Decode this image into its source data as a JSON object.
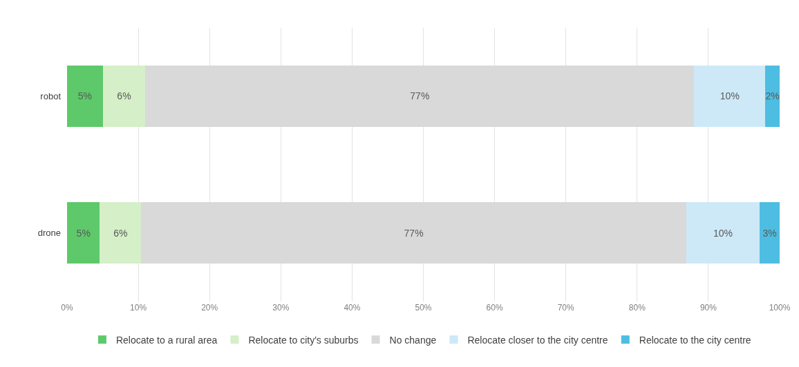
{
  "chart_data": {
    "type": "bar",
    "orientation": "horizontal",
    "stacked": true,
    "categories": [
      "robot",
      "drone"
    ],
    "series": [
      {
        "name": "Relocate to a rural area",
        "color": "#5ec96b",
        "values": [
          5,
          4.6
        ],
        "value_labels": [
          "5%",
          "5%"
        ]
      },
      {
        "name": "Relocate to city's suburbs",
        "color": "#d5efc8",
        "values": [
          6,
          5.8
        ],
        "value_labels": [
          "6%",
          "6%"
        ]
      },
      {
        "name": "No change",
        "color": "#d9d9d9",
        "values": [
          77,
          76.5
        ],
        "value_labels": [
          "77%",
          "77%"
        ]
      },
      {
        "name": "Relocate closer to the city centre",
        "color": "#cde9f7",
        "values": [
          10,
          10.3
        ],
        "value_labels": [
          "10%",
          "10%"
        ]
      },
      {
        "name": "Relocate to the city centre",
        "color": "#4dbde1",
        "values": [
          2,
          2.8
        ],
        "value_labels": [
          "2%",
          "3%"
        ]
      }
    ],
    "xlim": [
      0,
      100
    ],
    "xticks": [
      {
        "value": 0,
        "label": "0%"
      },
      {
        "value": 10,
        "label": "10%"
      },
      {
        "value": 20,
        "label": "20%"
      },
      {
        "value": 30,
        "label": "30%"
      },
      {
        "value": 40,
        "label": "40%"
      },
      {
        "value": 50,
        "label": "50%"
      },
      {
        "value": 60,
        "label": "60%"
      },
      {
        "value": 70,
        "label": "70%"
      },
      {
        "value": 80,
        "label": "80%"
      },
      {
        "value": 90,
        "label": "90%"
      },
      {
        "value": 100,
        "label": "100%"
      }
    ],
    "grid": "x",
    "legend": "bottom"
  }
}
